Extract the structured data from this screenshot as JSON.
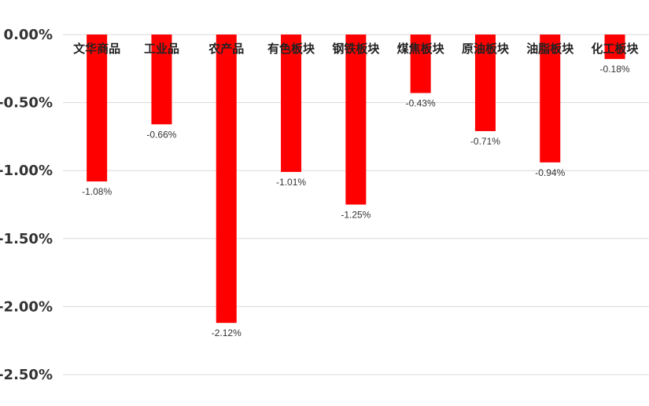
{
  "chart_data": {
    "type": "bar",
    "title": "",
    "xlabel": "",
    "ylabel": "",
    "categories": [
      "文华商品",
      "工业品",
      "农产品",
      "有色板块",
      "钢铁板块",
      "煤焦板块",
      "原油板块",
      "油脂板块",
      "化工板块"
    ],
    "values": [
      -1.08,
      -0.66,
      -2.12,
      -1.01,
      -1.25,
      -0.43,
      -0.71,
      -0.94,
      -0.18
    ],
    "value_labels": [
      "-1.08%",
      "-0.66%",
      "-2.12%",
      "-1.01%",
      "-1.25%",
      "-0.43%",
      "-0.71%",
      "-0.94%",
      "-0.18%"
    ],
    "ylim": [
      -2.5,
      0
    ],
    "yticks": [
      0,
      -0.5,
      -1.0,
      -1.5,
      -2.0,
      -2.5
    ],
    "ytick_labels": [
      "0.00%",
      "-0.50%",
      "-1.00%",
      "-1.50%",
      "-2.00%",
      "-2.50%"
    ],
    "grid": true,
    "legend": "none",
    "bar_color": "#ff0000"
  }
}
